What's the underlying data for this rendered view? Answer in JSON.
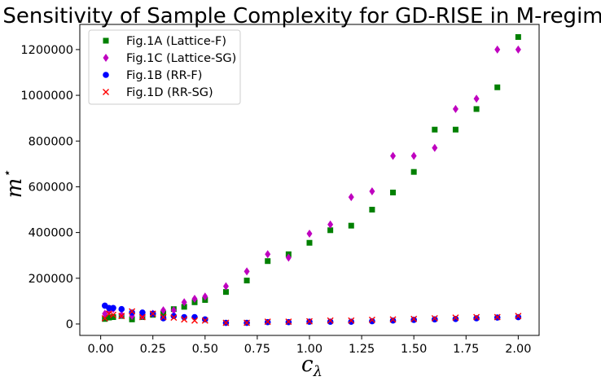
{
  "chart_data": {
    "type": "scatter",
    "title": "Sensitivity of Sample Complexity for GD-RISE in M-regime",
    "xlabel": "c",
    "xlabel_sub": "λ",
    "ylabel": "m",
    "ylabel_sup": "⋆",
    "xlim": [
      -0.1,
      2.1
    ],
    "ylim": [
      -50000,
      1310000
    ],
    "xticks": [
      0.0,
      0.25,
      0.5,
      0.75,
      1.0,
      1.25,
      1.5,
      1.75,
      2.0
    ],
    "xtick_labels": [
      "0.00",
      "0.25",
      "0.50",
      "0.75",
      "1.00",
      "1.25",
      "1.50",
      "1.75",
      "2.00"
    ],
    "yticks": [
      0,
      200000,
      400000,
      600000,
      800000,
      1000000,
      1200000
    ],
    "ytick_labels": [
      "0",
      "200000",
      "400000",
      "600000",
      "800000",
      "1000000",
      "1200000"
    ],
    "grid": false,
    "legend_position": "top-left",
    "series": [
      {
        "name": "Fig.1A (Lattice-F)",
        "marker": "square",
        "color": "#008000",
        "x": [
          0.02,
          0.04,
          0.06,
          0.1,
          0.15,
          0.2,
          0.25,
          0.3,
          0.35,
          0.4,
          0.45,
          0.5,
          0.6,
          0.7,
          0.8,
          0.9,
          1.0,
          1.1,
          1.2,
          1.3,
          1.4,
          1.5,
          1.6,
          1.7,
          1.8,
          1.9,
          2.0
        ],
        "y": [
          22000,
          28000,
          30000,
          35000,
          20000,
          30000,
          40000,
          45000,
          65000,
          75000,
          95000,
          105000,
          140000,
          190000,
          275000,
          305000,
          355000,
          410000,
          430000,
          500000,
          575000,
          665000,
          850000,
          850000,
          940000,
          1035000,
          1255000
        ]
      },
      {
        "name": "Fig.1C (Lattice-SG)",
        "marker": "diamond",
        "color": "#bf00bf",
        "x": [
          0.02,
          0.04,
          0.06,
          0.1,
          0.15,
          0.2,
          0.25,
          0.3,
          0.35,
          0.4,
          0.45,
          0.5,
          0.6,
          0.7,
          0.8,
          0.9,
          1.0,
          1.1,
          1.2,
          1.3,
          1.4,
          1.5,
          1.6,
          1.7,
          1.8,
          1.9,
          2.0
        ],
        "y": [
          45000,
          55000,
          65000,
          40000,
          35000,
          35000,
          45000,
          60000,
          60000,
          95000,
          110000,
          120000,
          165000,
          230000,
          305000,
          290000,
          395000,
          435000,
          555000,
          580000,
          735000,
          735000,
          770000,
          940000,
          985000,
          1200000,
          1200000
        ]
      },
      {
        "name": "Fig.1B (RR-F)",
        "marker": "circle",
        "color": "#0000ff",
        "x": [
          0.02,
          0.04,
          0.06,
          0.1,
          0.15,
          0.2,
          0.25,
          0.3,
          0.35,
          0.4,
          0.45,
          0.5,
          0.6,
          0.7,
          0.8,
          0.9,
          1.0,
          1.1,
          1.2,
          1.3,
          1.4,
          1.5,
          1.6,
          1.7,
          1.8,
          1.9,
          2.0
        ],
        "y": [
          80000,
          70000,
          70000,
          65000,
          50000,
          50000,
          45000,
          25000,
          35000,
          30000,
          30000,
          20000,
          5000,
          5000,
          8000,
          8000,
          10000,
          10000,
          10000,
          12000,
          15000,
          18000,
          20000,
          22000,
          25000,
          28000,
          30000
        ]
      },
      {
        "name": "Fig.1D (RR-SG)",
        "marker": "x",
        "color": "#ff0000",
        "x": [
          0.02,
          0.04,
          0.06,
          0.1,
          0.15,
          0.2,
          0.25,
          0.3,
          0.35,
          0.4,
          0.45,
          0.5,
          0.6,
          0.7,
          0.8,
          0.9,
          1.0,
          1.1,
          1.2,
          1.3,
          1.4,
          1.5,
          1.6,
          1.7,
          1.8,
          1.9,
          2.0
        ],
        "y": [
          25000,
          45000,
          40000,
          35000,
          55000,
          30000,
          45000,
          30000,
          28000,
          20000,
          15000,
          15000,
          5000,
          5000,
          10000,
          10000,
          12000,
          15000,
          15000,
          18000,
          20000,
          22000,
          25000,
          28000,
          30000,
          30000,
          35000
        ]
      }
    ]
  }
}
